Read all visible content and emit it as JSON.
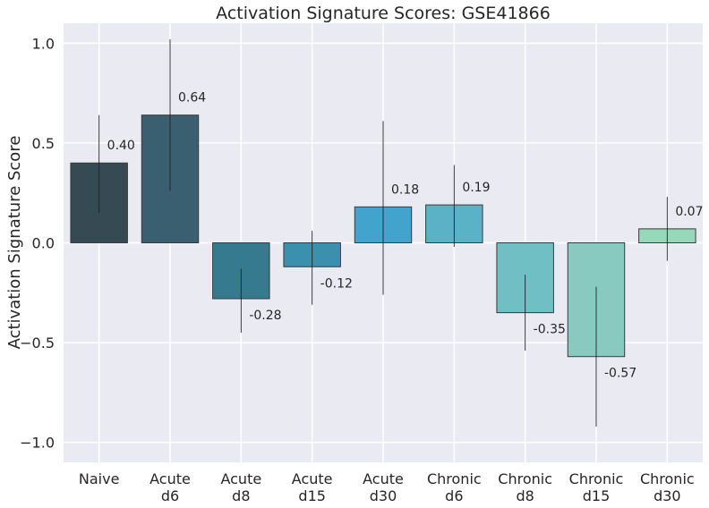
{
  "chart_data": {
    "type": "bar",
    "title": "Activation Signature Scores: GSE41866",
    "xlabel": "",
    "ylabel": "Activation Signature Score",
    "ylim": [
      -1.1,
      1.1
    ],
    "yticks": [
      -1.0,
      -0.5,
      0.0,
      0.5,
      1.0
    ],
    "ytick_labels": [
      "−1.0",
      "−0.5",
      "0.0",
      "0.5",
      "1.0"
    ],
    "grid": true,
    "categories": [
      [
        "Naive"
      ],
      [
        "Acute",
        "d6"
      ],
      [
        "Acute",
        "d8"
      ],
      [
        "Acute",
        "d15"
      ],
      [
        "Acute",
        "d30"
      ],
      [
        "Chronic",
        "d6"
      ],
      [
        "Chronic",
        "d8"
      ],
      [
        "Chronic",
        "d15"
      ],
      [
        "Chronic",
        "d30"
      ]
    ],
    "values": [
      0.4,
      0.64,
      -0.28,
      -0.12,
      0.18,
      0.19,
      -0.35,
      -0.57,
      0.07
    ],
    "value_labels": [
      "0.40",
      "0.64",
      "-0.28",
      "-0.12",
      "0.18",
      "0.19",
      "-0.35",
      "-0.57",
      "0.07"
    ],
    "error_low": [
      0.15,
      0.26,
      -0.45,
      -0.31,
      -0.26,
      -0.02,
      -0.54,
      -0.92,
      -0.09
    ],
    "error_high": [
      0.64,
      1.02,
      -0.13,
      0.06,
      0.61,
      0.39,
      -0.16,
      -0.22,
      0.23
    ],
    "colors": [
      "#354a52",
      "#3a5f70",
      "#357a8f",
      "#3a90ad",
      "#42a4cc",
      "#5ab2c7",
      "#6fbfc5",
      "#88cac0",
      "#97d8b9"
    ]
  }
}
